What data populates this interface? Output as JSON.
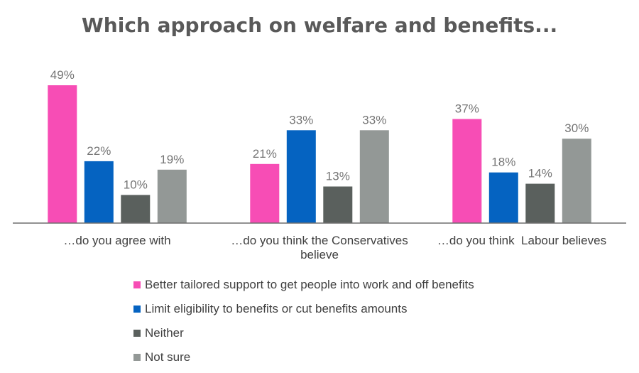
{
  "chart_data": {
    "type": "bar",
    "title": "Which approach on welfare and benefits...",
    "categories": [
      [
        "…do you agree with"
      ],
      [
        "…do you think the Conservatives",
        "believe"
      ],
      [
        "…do you think  Labour believes"
      ]
    ],
    "series": [
      {
        "name": "Better tailored support to get people into work and off benefits",
        "color": "#f74db5",
        "values": [
          49,
          21,
          37
        ]
      },
      {
        "name": "Limit eligibility to benefits or cut benefits amounts",
        "color": "#0563c1",
        "values": [
          22,
          33,
          18
        ]
      },
      {
        "name": "Neither",
        "color": "#5a605d",
        "values": [
          10,
          13,
          14
        ]
      },
      {
        "name": "Not sure",
        "color": "#939896",
        "values": [
          19,
          33,
          30
        ]
      }
    ],
    "value_suffix": "%",
    "ylim": [
      0,
      50
    ],
    "grid": false,
    "legend_position": "bottom",
    "data_label_color": "#757575",
    "axis_label_color": "#404040",
    "title_color": "#595959"
  }
}
